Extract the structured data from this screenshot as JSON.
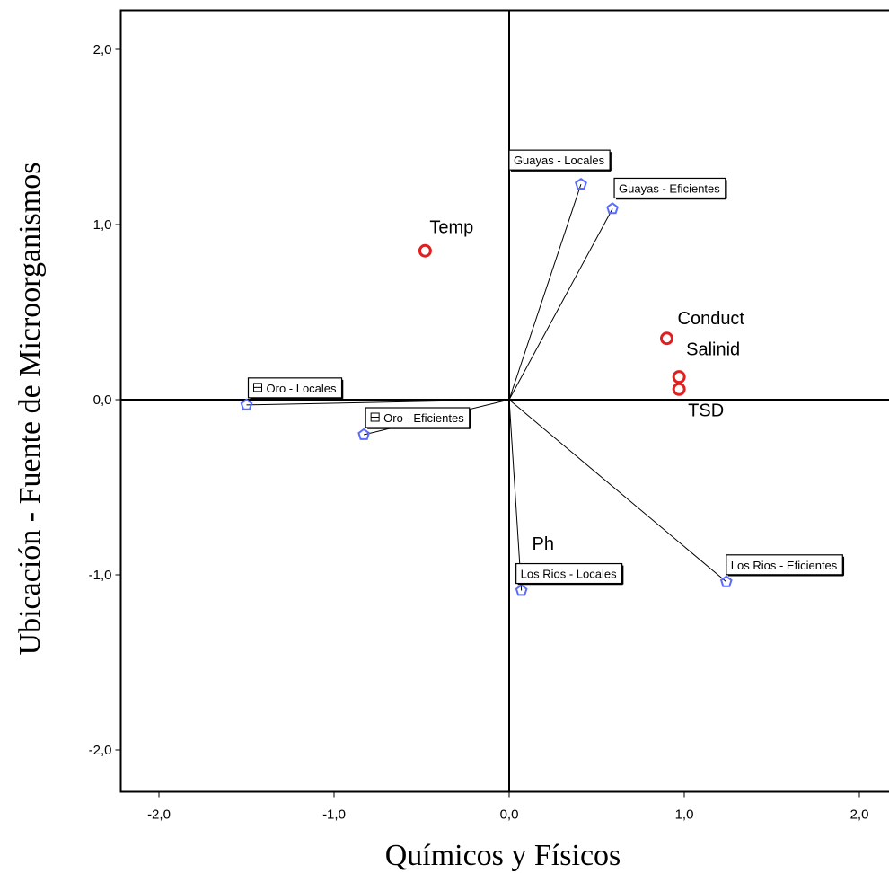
{
  "chart_data": {
    "type": "scatter",
    "xlabel": "Químicos y Físicos",
    "ylabel": "Ubicación - Fuente de Microorganismos",
    "xlim": [
      -2.2,
      2.2
    ],
    "ylim": [
      -2.2,
      2.2
    ],
    "x_ticks": [
      {
        "value": -2.0,
        "label": "-2,0"
      },
      {
        "value": -1.0,
        "label": "-1,0"
      },
      {
        "value": 0.0,
        "label": "0,0"
      },
      {
        "value": 1.0,
        "label": "1,0"
      },
      {
        "value": 2.0,
        "label": "2,0"
      }
    ],
    "y_ticks": [
      {
        "value": 2.0,
        "label": "2,0"
      },
      {
        "value": 1.0,
        "label": "1,0"
      },
      {
        "value": 0.0,
        "label": "0,0"
      },
      {
        "value": -1.0,
        "label": "-1,0"
      },
      {
        "value": -2.0,
        "label": "-2,0"
      }
    ],
    "grid": false,
    "reference_lines": {
      "x0": true,
      "y0": true
    },
    "colors": {
      "objects": "#5a6cff",
      "variables": "#e02020"
    },
    "objects": [
      {
        "label": "Guayas - Locales",
        "x": 0.41,
        "y": 1.23
      },
      {
        "label": "Guayas - Eficientes",
        "x": 0.59,
        "y": 1.09
      },
      {
        "label": "Oro - Locales",
        "x": -1.5,
        "y": -0.03
      },
      {
        "label": "Oro - Eficientes",
        "x": -0.83,
        "y": -0.2
      },
      {
        "label": "Los Rios - Locales",
        "x": 0.07,
        "y": -1.09
      },
      {
        "label": "Los Rios - Eficientes",
        "x": 1.24,
        "y": -1.04
      }
    ],
    "variables": [
      {
        "label": "Temp",
        "x": -0.48,
        "y": 0.85
      },
      {
        "label": "Conduct",
        "x": 0.9,
        "y": 0.35
      },
      {
        "label": "Salinid",
        "x": 0.97,
        "y": 0.13
      },
      {
        "label": "TSD",
        "x": 0.97,
        "y": 0.06
      },
      {
        "label": "Ph",
        "x": 0.1,
        "y": -0.98
      }
    ]
  }
}
